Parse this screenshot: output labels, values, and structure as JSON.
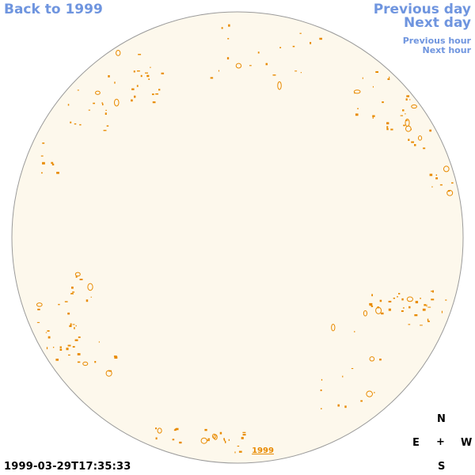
{
  "nav": {
    "back": "Back to 1999",
    "previous_day": "Previous day",
    "next_day": "Next day",
    "previous_hour": "Previous hour",
    "next_hour": "Next hour"
  },
  "disk": {
    "fill_color": "#fdf8ec",
    "border_color": "#9a9a9a",
    "contour_color": "#e88a00",
    "year_label": "1999"
  },
  "timestamp": "1999-03-29T17:35:33",
  "compass": {
    "north": "N",
    "east": "E",
    "center": "+",
    "west": "W",
    "south": "S"
  }
}
